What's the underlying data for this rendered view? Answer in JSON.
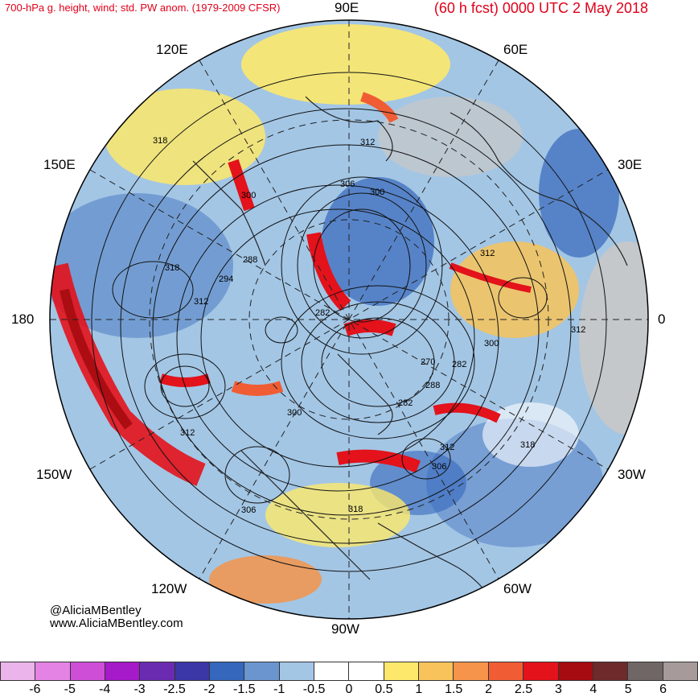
{
  "header": {
    "left_title": "700-hPa g. height, wind; std. PW anom. (1979-2009 CFSR)",
    "right_title": "(60 h fcst) 0000 UTC 2 May 2018"
  },
  "map": {
    "projection": "polar-stereographic",
    "hemisphere": "northern",
    "longitude_labels": {
      "n90e": "90E",
      "n60e": "60E",
      "n120e": "120E",
      "n150e": "150E",
      "n30e": "30E",
      "n180": "180",
      "n0": "0",
      "n150w": "150W",
      "n30w": "30W",
      "n120w": "120W",
      "n60w": "60W",
      "n90w": "90W"
    },
    "contour_labels": [
      "318",
      "312",
      "306",
      "300",
      "300",
      "288",
      "294",
      "318",
      "312",
      "282",
      "270",
      "282",
      "288",
      "282",
      "300",
      "312",
      "312",
      "306",
      "300",
      "312",
      "318",
      "318",
      "306",
      "312",
      "318"
    ],
    "colors": {
      "land_gray": "#c8c8c8",
      "ocean_blue": "#7fa5d6",
      "dark_blue": "#3e6cbf",
      "yellow": "#fce56a",
      "orange": "#f59b45",
      "red": "#d7191c",
      "dark_red": "#9e0000"
    }
  },
  "credits": {
    "handle": "@AliciaMBentley",
    "website": "www.AliciaMBentley.com"
  },
  "colorbar": {
    "colors": [
      "#ebb4ea",
      "#e483e4",
      "#cf4ed8",
      "#a51ac9",
      "#6a2bb0",
      "#3c37a6",
      "#3567bc",
      "#6b95cf",
      "#a3c6e5",
      "#ffffff",
      "#ffffff",
      "#fde86b",
      "#f7c35a",
      "#f5944a",
      "#f05d34",
      "#e3121b",
      "#a50b10",
      "#6e2a2a",
      "#706666",
      "#a69a9a"
    ],
    "labels": [
      "-6",
      "-5",
      "-4",
      "-3",
      "-2.5",
      "-2",
      "-1.5",
      "-1",
      "-0.5",
      "0",
      "0.5",
      "1",
      "1.5",
      "2",
      "2.5",
      "3",
      "4",
      "5",
      "6"
    ]
  }
}
